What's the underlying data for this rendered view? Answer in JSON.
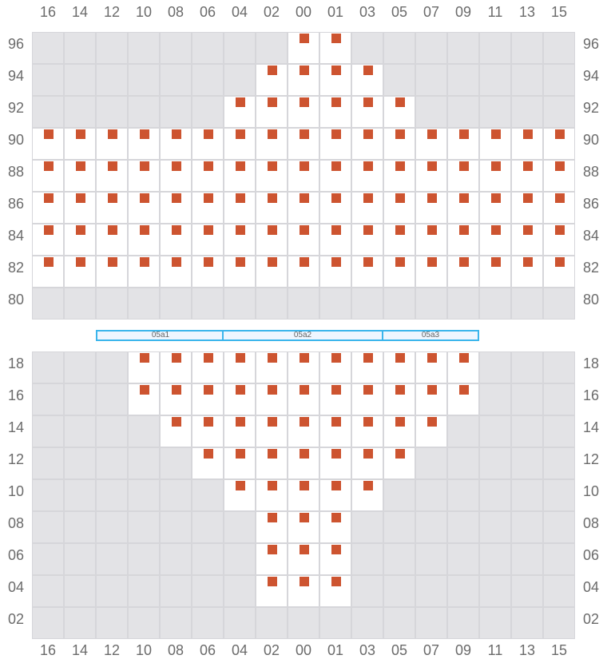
{
  "colors": {
    "seat": "#cd5430",
    "available": "#ffffff",
    "unavailable": "#e3e3e6",
    "section_border": "#3bb5ec"
  },
  "columns": [
    "16",
    "14",
    "12",
    "10",
    "08",
    "06",
    "04",
    "02",
    "00",
    "01",
    "03",
    "05",
    "07",
    "09",
    "11",
    "13",
    "15"
  ],
  "top_block": {
    "rows": [
      {
        "label": "96",
        "seats": [
          "00",
          "01"
        ]
      },
      {
        "label": "94",
        "seats": [
          "02",
          "00",
          "01",
          "03"
        ]
      },
      {
        "label": "92",
        "seats": [
          "04",
          "02",
          "00",
          "01",
          "03",
          "05"
        ]
      },
      {
        "label": "90",
        "seats": "all"
      },
      {
        "label": "88",
        "seats": "all"
      },
      {
        "label": "86",
        "seats": "all"
      },
      {
        "label": "84",
        "seats": "all"
      },
      {
        "label": "82",
        "seats": "all"
      },
      {
        "label": "80",
        "seats": []
      }
    ]
  },
  "sections": [
    {
      "label": "05a1",
      "from": "12",
      "to": "04"
    },
    {
      "label": "05a2",
      "from": "04",
      "to": "05"
    },
    {
      "label": "05a3",
      "from": "05",
      "to": "11"
    }
  ],
  "bottom_block": {
    "rows": [
      {
        "label": "18",
        "seats": [
          "10",
          "08",
          "06",
          "04",
          "02",
          "00",
          "01",
          "03",
          "05",
          "07",
          "09"
        ]
      },
      {
        "label": "16",
        "seats": [
          "10",
          "08",
          "06",
          "04",
          "02",
          "00",
          "01",
          "03",
          "05",
          "07",
          "09"
        ]
      },
      {
        "label": "14",
        "seats": [
          "08",
          "06",
          "04",
          "02",
          "00",
          "01",
          "03",
          "05",
          "07"
        ]
      },
      {
        "label": "12",
        "seats": [
          "06",
          "04",
          "02",
          "00",
          "01",
          "03",
          "05"
        ]
      },
      {
        "label": "10",
        "seats": [
          "04",
          "02",
          "00",
          "01",
          "03"
        ]
      },
      {
        "label": "08",
        "seats": [
          "02",
          "00",
          "01"
        ]
      },
      {
        "label": "06",
        "seats": [
          "02",
          "00",
          "01"
        ]
      },
      {
        "label": "04",
        "seats": [
          "02",
          "00",
          "01"
        ]
      },
      {
        "label": "02",
        "seats": []
      }
    ]
  }
}
